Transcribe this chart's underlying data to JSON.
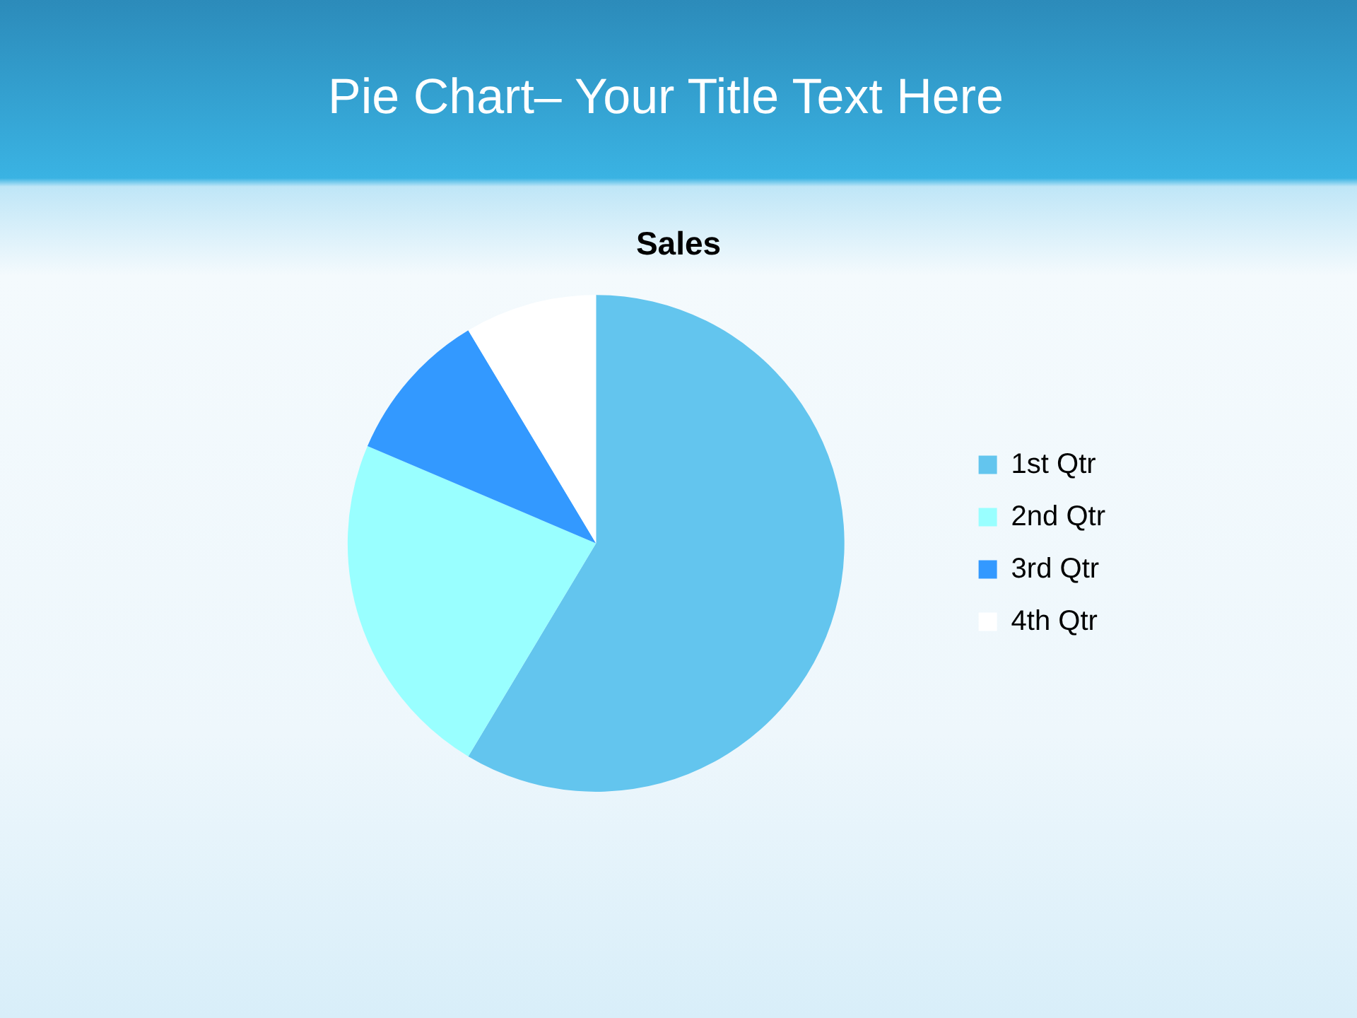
{
  "chart_data": {
    "type": "pie",
    "title": "Pie Chart– Your Title Text Here",
    "subtitle": "Sales",
    "categories": [
      "1st Qtr",
      "2nd Qtr",
      "3rd Qtr",
      "4th Qtr"
    ],
    "values": [
      58.6,
      22.8,
      10,
      8.6
    ],
    "colors": [
      "#63c5ee",
      "#99ffff",
      "#3399ff",
      "#ffffff"
    ],
    "legend": "right"
  }
}
